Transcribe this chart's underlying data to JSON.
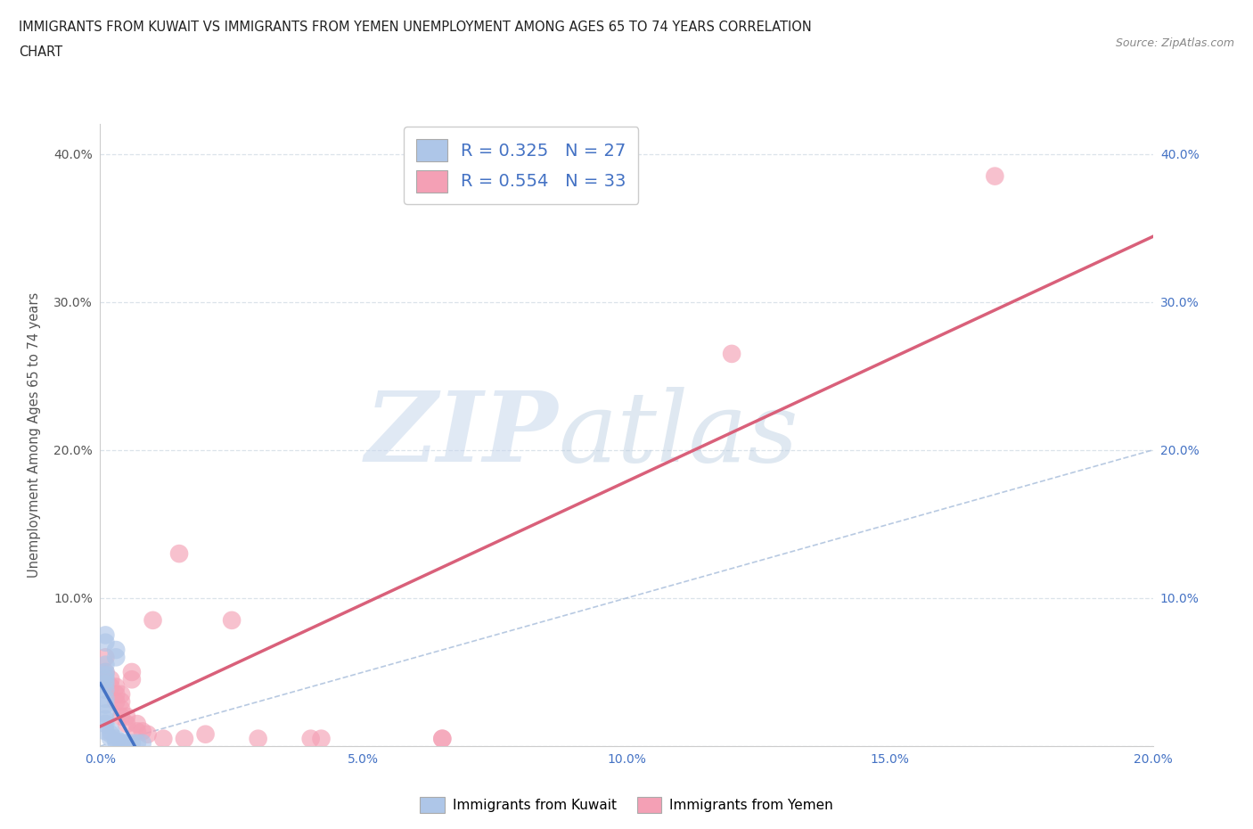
{
  "title_line1": "IMMIGRANTS FROM KUWAIT VS IMMIGRANTS FROM YEMEN UNEMPLOYMENT AMONG AGES 65 TO 74 YEARS CORRELATION",
  "title_line2": "CHART",
  "source": "Source: ZipAtlas.com",
  "ylabel": "Unemployment Among Ages 65 to 74 years",
  "xlim": [
    0.0,
    0.2
  ],
  "ylim": [
    0.0,
    0.42
  ],
  "xticks": [
    0.0,
    0.05,
    0.1,
    0.15,
    0.2
  ],
  "xtick_labels": [
    "0.0%",
    "5.0%",
    "10.0%",
    "15.0%",
    "20.0%"
  ],
  "yticks": [
    0.0,
    0.1,
    0.2,
    0.3,
    0.4
  ],
  "ytick_labels": [
    "",
    "10.0%",
    "20.0%",
    "30.0%",
    "40.0%"
  ],
  "right_ytick_labels": [
    "",
    "10.0%",
    "20.0%",
    "30.0%",
    "40.0%"
  ],
  "kuwait_R": 0.325,
  "kuwait_N": 27,
  "yemen_R": 0.554,
  "yemen_N": 33,
  "kuwait_color": "#aec6e8",
  "yemen_color": "#f4a0b5",
  "kuwait_line_color": "#4472c4",
  "yemen_line_color": "#d9607a",
  "diagonal_color": "#a0b8d8",
  "grid_color": "#d8e0e8",
  "kuwait_scatter": [
    [
      0.001,
      0.075
    ],
    [
      0.001,
      0.07
    ],
    [
      0.001,
      0.055
    ],
    [
      0.001,
      0.05
    ],
    [
      0.001,
      0.048
    ],
    [
      0.001,
      0.045
    ],
    [
      0.001,
      0.042
    ],
    [
      0.001,
      0.038
    ],
    [
      0.001,
      0.032
    ],
    [
      0.001,
      0.028
    ],
    [
      0.001,
      0.022
    ],
    [
      0.001,
      0.018
    ],
    [
      0.001,
      0.015
    ],
    [
      0.001,
      0.01
    ],
    [
      0.002,
      0.01
    ],
    [
      0.002,
      0.008
    ],
    [
      0.002,
      0.005
    ],
    [
      0.003,
      0.005
    ],
    [
      0.003,
      0.003
    ],
    [
      0.004,
      0.003
    ],
    [
      0.004,
      0.002
    ],
    [
      0.005,
      0.002
    ],
    [
      0.006,
      0.002
    ],
    [
      0.007,
      0.002
    ],
    [
      0.008,
      0.002
    ],
    [
      0.003,
      0.065
    ],
    [
      0.003,
      0.06
    ]
  ],
  "yemen_scatter": [
    [
      0.001,
      0.06
    ],
    [
      0.001,
      0.05
    ],
    [
      0.001,
      0.045
    ],
    [
      0.002,
      0.045
    ],
    [
      0.002,
      0.04
    ],
    [
      0.003,
      0.04
    ],
    [
      0.003,
      0.035
    ],
    [
      0.003,
      0.03
    ],
    [
      0.004,
      0.035
    ],
    [
      0.004,
      0.03
    ],
    [
      0.004,
      0.025
    ],
    [
      0.004,
      0.02
    ],
    [
      0.005,
      0.02
    ],
    [
      0.005,
      0.015
    ],
    [
      0.006,
      0.05
    ],
    [
      0.006,
      0.045
    ],
    [
      0.007,
      0.015
    ],
    [
      0.007,
      0.01
    ],
    [
      0.008,
      0.01
    ],
    [
      0.009,
      0.008
    ],
    [
      0.01,
      0.085
    ],
    [
      0.012,
      0.005
    ],
    [
      0.015,
      0.13
    ],
    [
      0.016,
      0.005
    ],
    [
      0.02,
      0.008
    ],
    [
      0.025,
      0.085
    ],
    [
      0.03,
      0.005
    ],
    [
      0.04,
      0.005
    ],
    [
      0.042,
      0.005
    ],
    [
      0.065,
      0.005
    ],
    [
      0.065,
      0.005
    ],
    [
      0.12,
      0.265
    ],
    [
      0.17,
      0.385
    ]
  ]
}
